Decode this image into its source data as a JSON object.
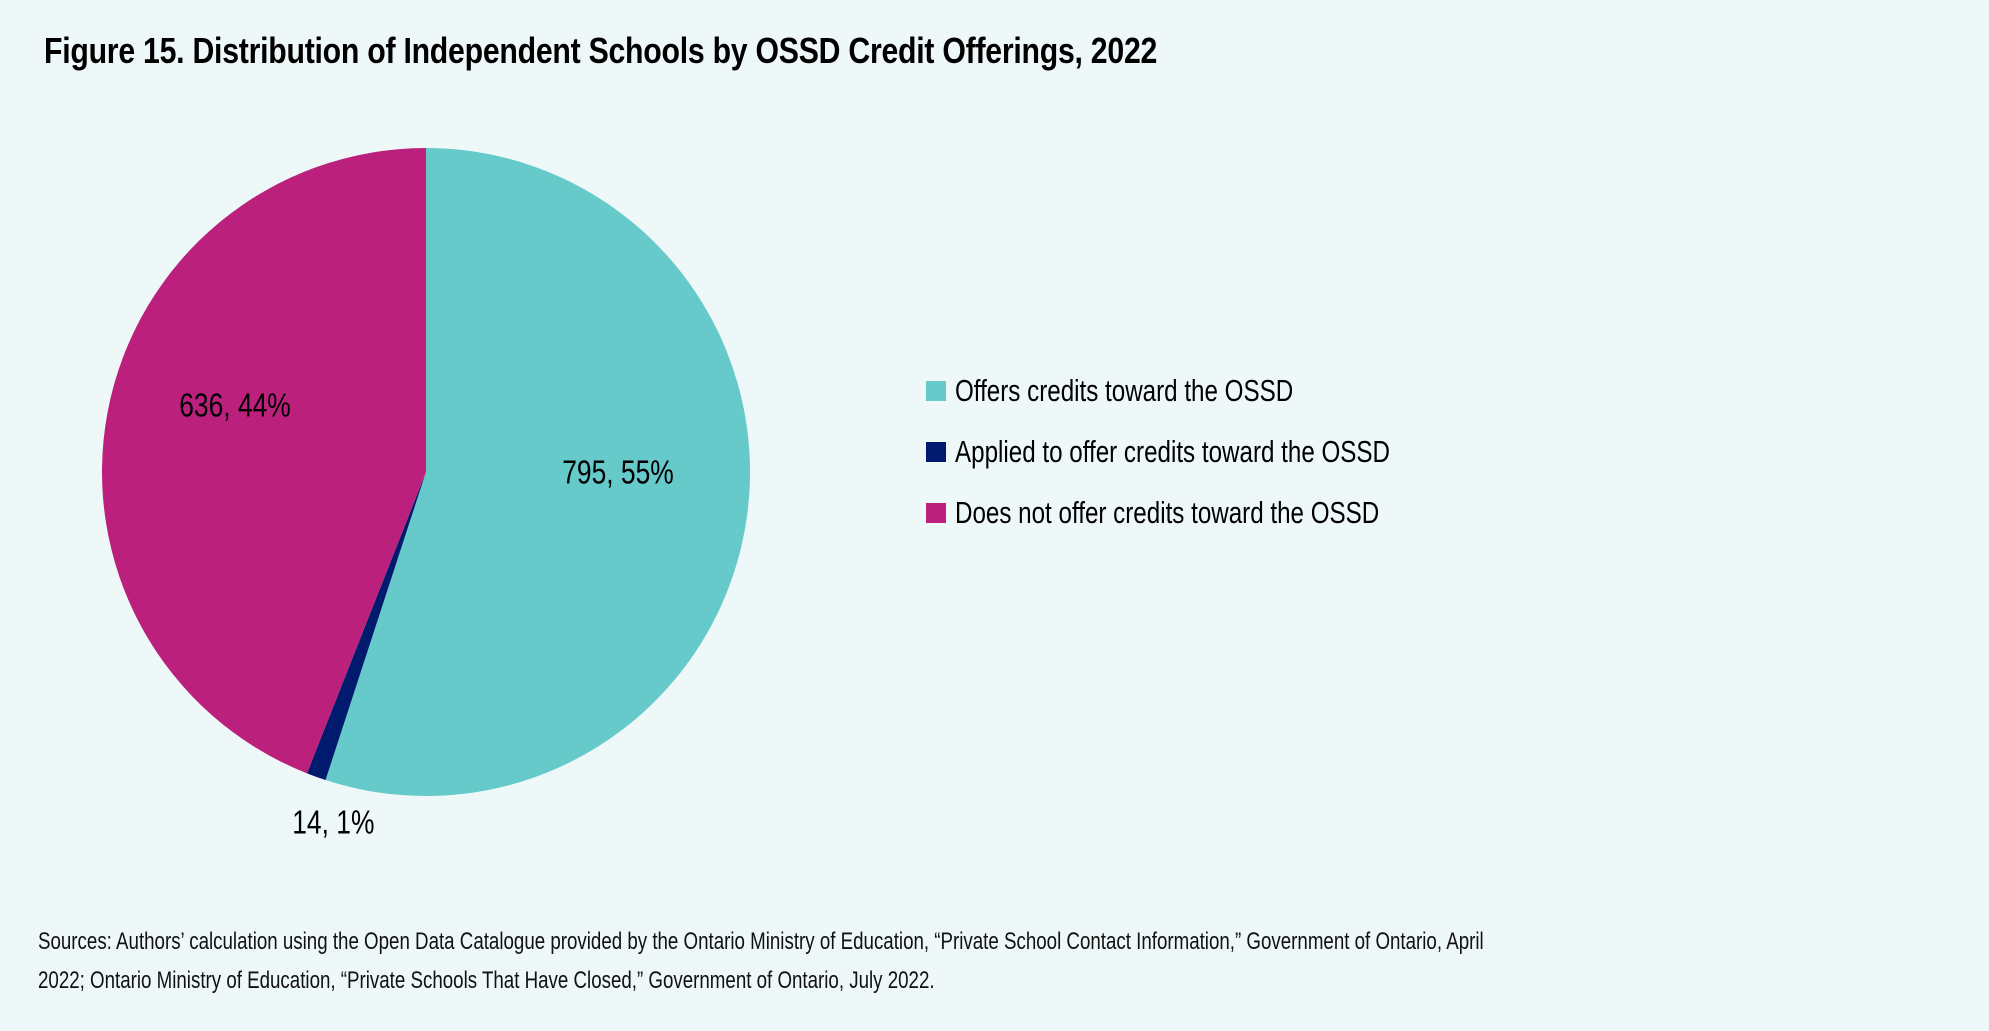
{
  "title": "Figure 15. Distribution of Independent Schools by OSSD Credit Offerings, 2022",
  "chart_data": {
    "type": "pie",
    "title": "Figure 15. Distribution of Independent Schools by OSSD Credit Offerings, 2022",
    "start": "12 o'clock, clockwise",
    "slices": [
      {
        "label": "Offers credits toward the OSSD",
        "value": 795,
        "percent": 55,
        "data_label": "795, 55%",
        "color": "#66c9ca"
      },
      {
        "label": "Applied to offer credits toward the OSSD",
        "value": 14,
        "percent": 1,
        "data_label": "14, 1%",
        "color": "#001a6e"
      },
      {
        "label": "Does not offer credits toward the OSSD",
        "value": 636,
        "percent": 44,
        "data_label": "636, 44%",
        "color": "#bc207d"
      }
    ],
    "legend_position": "right"
  },
  "source": {
    "line1": "Sources: Authors’ calculation using the Open Data Catalogue provided by the Ontario Ministry of Education, “Private School Contact Information,” Government of Ontario, April",
    "line2": "2022; Ontario Ministry of Education, “Private Schools That Have Closed,” Government of Ontario, July 2022."
  }
}
